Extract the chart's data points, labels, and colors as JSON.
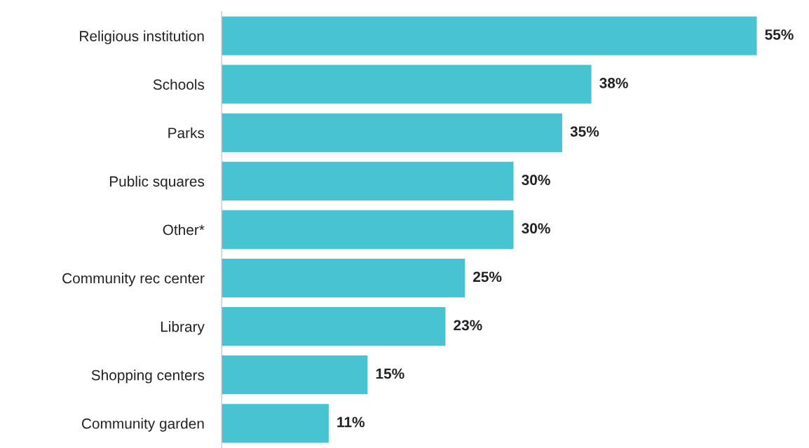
{
  "chart_data": {
    "type": "bar",
    "orientation": "horizontal",
    "categories": [
      "Religious institution",
      "Schools",
      "Parks",
      "Public squares",
      "Other*",
      "Community rec center",
      "Library",
      "Shopping centers",
      "Community garden"
    ],
    "values": [
      55,
      38,
      35,
      30,
      30,
      25,
      23,
      15,
      11
    ],
    "value_labels": [
      "55%",
      "38%",
      "35%",
      "30%",
      "30%",
      "25%",
      "23%",
      "15%",
      "11%"
    ],
    "color": "#48c3d1",
    "tick_labels": "y",
    "grid": false,
    "legend": false
  }
}
